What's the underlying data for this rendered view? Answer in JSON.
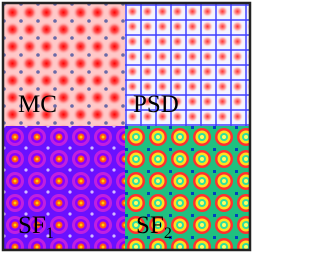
{
  "panels": [
    {
      "label": "MC"
    },
    {
      "label": "PSD"
    },
    {
      "label": "SF",
      "subscript": "1"
    },
    {
      "label": "SF",
      "subscript": "2"
    }
  ]
}
